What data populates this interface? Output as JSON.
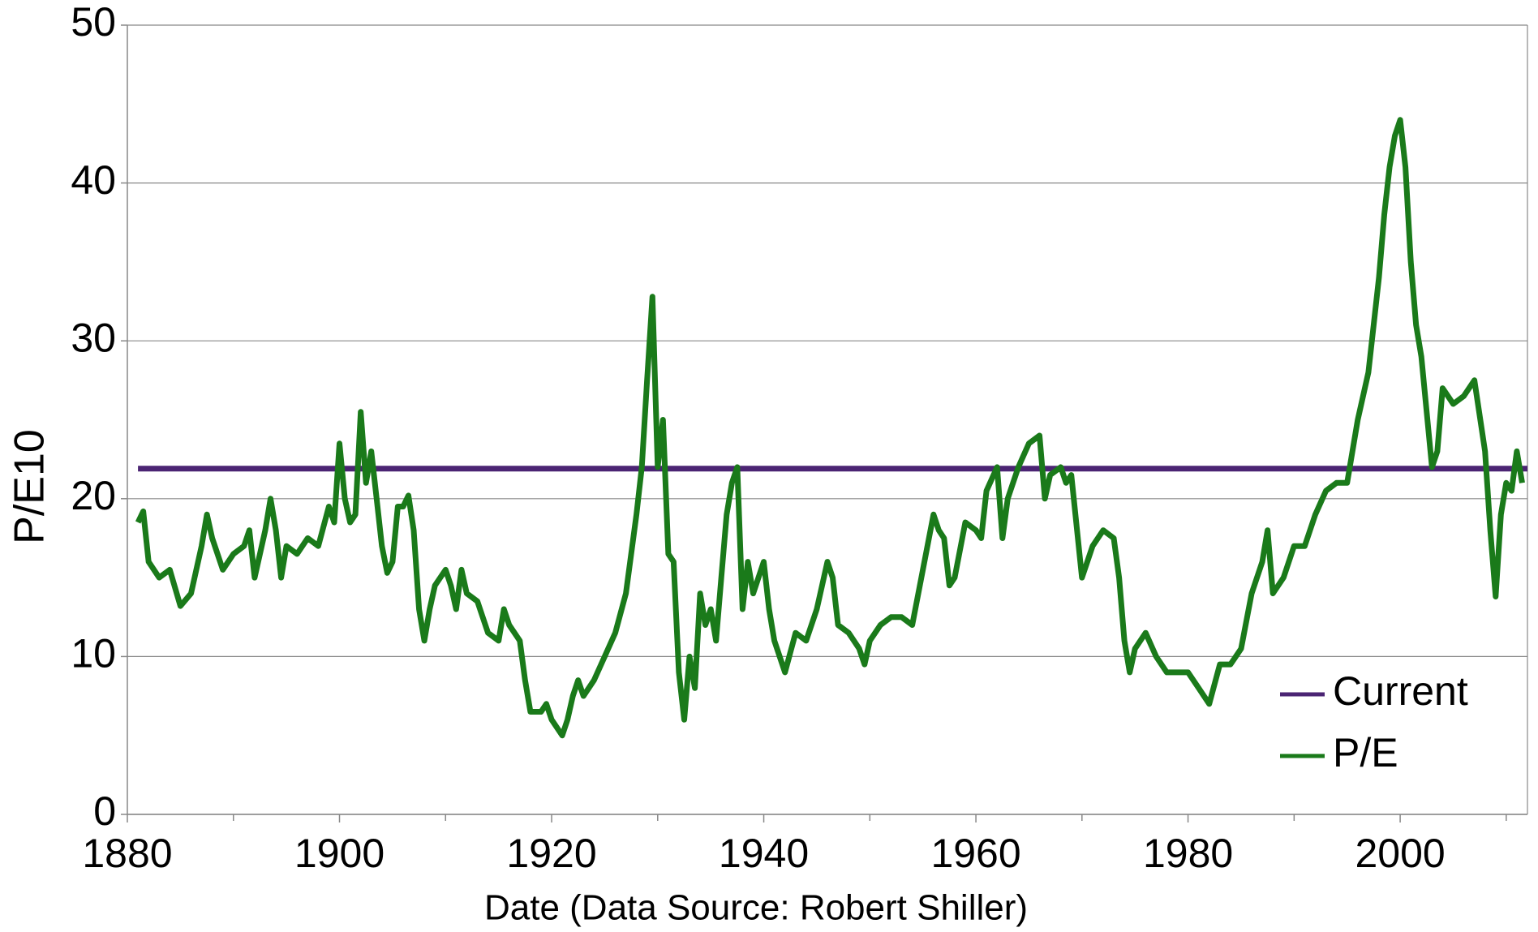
{
  "chart_data": {
    "type": "line",
    "y_label": "P/E10",
    "x_label": "Date (Data Source: Robert Shiller)",
    "xlim": [
      1880,
      2012
    ],
    "xticks": [
      1880,
      1900,
      1920,
      1940,
      1960,
      1980,
      2000
    ],
    "xminorticks": [
      1890,
      1910,
      1930,
      1950,
      1970,
      1990,
      2010
    ],
    "ylim": [
      0,
      50
    ],
    "yticks": [
      0,
      10,
      20,
      30,
      40,
      50
    ],
    "grid": true,
    "legend": "lower right",
    "series": [
      {
        "name": "Current",
        "color": "#4b2473",
        "x": [
          1881,
          2012
        ],
        "values": [
          21.9,
          21.9
        ]
      },
      {
        "name": "P/E",
        "color": "#1a7a1a",
        "x": [
          1881,
          1881.5,
          1882,
          1883,
          1884,
          1885,
          1886,
          1887,
          1887.5,
          1888,
          1889,
          1890,
          1891,
          1891.5,
          1892,
          1893,
          1893.5,
          1894,
          1894.5,
          1895,
          1896,
          1897,
          1898,
          1899,
          1899.5,
          1900,
          1900.5,
          1901,
          1901.5,
          1902,
          1902.5,
          1903,
          1903.5,
          1904,
          1904.5,
          1905,
          1905.5,
          1906,
          1906.5,
          1907,
          1907.5,
          1908,
          1908.5,
          1909,
          1910,
          1910.5,
          1911,
          1911.5,
          1912,
          1913,
          1914,
          1915,
          1915.5,
          1916,
          1917,
          1917.5,
          1918,
          1919,
          1919.5,
          1920,
          1921,
          1921.5,
          1922,
          1922.5,
          1923,
          1924,
          1925,
          1926,
          1927,
          1928,
          1928.5,
          1929,
          1929.5,
          1930,
          1930.5,
          1931,
          1931.5,
          1932,
          1932.5,
          1933,
          1933.5,
          1934,
          1934.5,
          1935,
          1935.5,
          1936,
          1936.5,
          1937,
          1937.5,
          1938,
          1938.5,
          1939,
          1940,
          1940.5,
          1941,
          1942,
          1943,
          1944,
          1945,
          1946,
          1946.5,
          1947,
          1948,
          1949,
          1949.5,
          1950,
          1951,
          1952,
          1953,
          1954,
          1955,
          1956,
          1956.5,
          1957,
          1957.5,
          1958,
          1959,
          1960,
          1960.5,
          1961,
          1962,
          1962.5,
          1963,
          1964,
          1965,
          1966,
          1966.5,
          1967,
          1968,
          1968.5,
          1969,
          1970,
          1971,
          1972,
          1973,
          1973.5,
          1974,
          1974.5,
          1975,
          1976,
          1977,
          1978,
          1979,
          1980,
          1981,
          1982,
          1983,
          1984,
          1985,
          1986,
          1987,
          1987.5,
          1988,
          1989,
          1990,
          1991,
          1992,
          1993,
          1994,
          1995,
          1996,
          1997,
          1998,
          1998.5,
          1999,
          1999.5,
          2000,
          2000.5,
          2001,
          2001.5,
          2002,
          2003,
          2003.5,
          2004,
          2005,
          2006,
          2007,
          2008,
          2008.5,
          2009,
          2009.5,
          2010,
          2010.5,
          2011,
          2011.5
        ],
        "values": [
          18.5,
          19.2,
          16,
          15,
          15.5,
          13.2,
          14,
          17,
          19,
          17.5,
          15.5,
          16.5,
          17,
          18,
          15,
          18,
          20,
          18,
          15,
          17,
          16.5,
          17.5,
          17,
          19.5,
          18.5,
          23.5,
          20,
          18.5,
          19,
          25.5,
          21,
          23,
          20,
          17,
          15.3,
          16,
          19.5,
          19.5,
          20.2,
          18,
          13,
          11,
          13,
          14.5,
          15.5,
          14.5,
          13,
          15.5,
          14,
          13.5,
          11.5,
          11,
          13,
          12,
          11,
          8.5,
          6.5,
          6.5,
          7,
          6,
          5,
          6,
          7.5,
          8.5,
          7.5,
          8.5,
          10,
          11.5,
          14,
          19,
          22,
          27.5,
          32.8,
          22,
          25,
          16.5,
          16,
          9,
          6,
          10,
          8,
          14,
          12,
          13,
          11,
          15,
          19,
          21,
          22,
          13,
          16,
          14,
          16,
          13,
          11,
          9,
          11.5,
          11,
          13,
          16,
          15,
          12,
          11.5,
          10.5,
          9.5,
          11,
          12,
          12.5,
          12.5,
          12,
          15.5,
          19,
          18,
          17.5,
          14.5,
          15,
          18.5,
          18,
          17.5,
          20.5,
          22,
          17.5,
          20,
          22,
          23.5,
          24,
          20,
          21.5,
          22,
          21,
          21.5,
          15,
          17,
          18,
          17.5,
          15,
          11,
          9,
          10.5,
          11.5,
          10,
          9,
          9,
          9,
          8,
          7,
          9.5,
          9.5,
          10.5,
          14,
          16,
          18,
          14,
          15,
          17,
          17,
          19,
          20.5,
          21,
          21,
          25,
          28,
          34,
          38,
          41,
          43,
          44,
          41,
          35,
          31,
          29,
          22,
          23,
          27,
          26,
          26.5,
          27.5,
          23,
          18,
          13.8,
          19,
          21,
          20.5,
          23,
          21
        ]
      }
    ]
  }
}
